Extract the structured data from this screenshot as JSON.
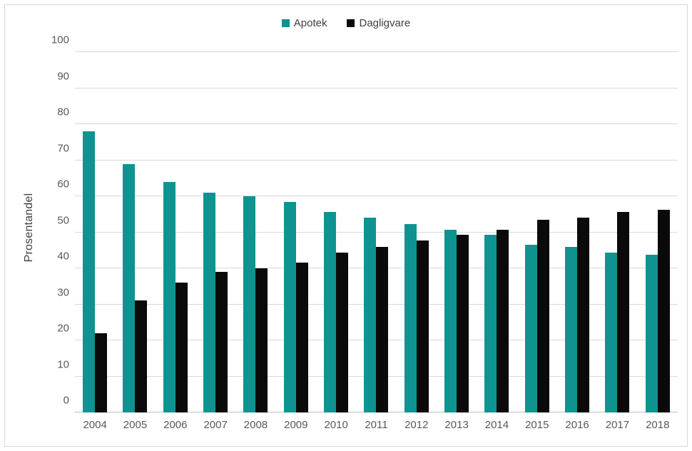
{
  "chart_data": {
    "type": "bar",
    "title": "",
    "xlabel": "",
    "ylabel": "Prosentandel",
    "categories": [
      "2004",
      "2005",
      "2006",
      "2007",
      "2008",
      "2009",
      "2010",
      "2011",
      "2012",
      "2013",
      "2014",
      "2015",
      "2016",
      "2017",
      "2018"
    ],
    "series": [
      {
        "name": "Apotek",
        "color": "#0e9390",
        "values": [
          78,
          69,
          64,
          61,
          60,
          58.5,
          55.7,
          54,
          52.3,
          50.6,
          49.4,
          46.5,
          46,
          44.3,
          43.8
        ]
      },
      {
        "name": "Dagligvare",
        "color": "#0a0a0a",
        "values": [
          22,
          31,
          36,
          39,
          40,
          41.5,
          44.3,
          46,
          47.7,
          49.4,
          50.6,
          53.5,
          54,
          55.7,
          56.2
        ]
      }
    ],
    "ylim": [
      0,
      100
    ],
    "ytick_step": 10,
    "grid": "horizontal",
    "legend_position": "top",
    "bar_unit": "percent"
  },
  "colors": {
    "gridline": "#d9d9d9",
    "axis_line": "#bfbfbf",
    "tick_text": "#595959",
    "frame_border": "#d7d7d7",
    "background": "#ffffff"
  }
}
